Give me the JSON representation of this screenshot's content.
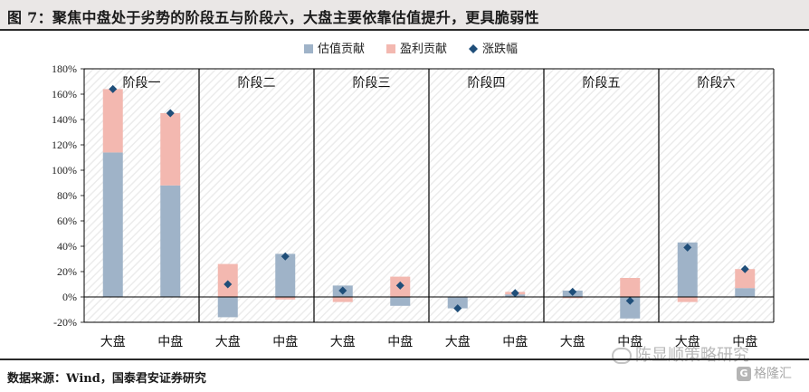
{
  "title": "图 7：聚焦中盘处于劣势的阶段五与阶段六，大盘主要依靠估值提升，更具脆弱性",
  "source": "数据来源：Wind，国泰君安证券研究",
  "watermark": {
    "name": "陈显顺策略研究",
    "badge_letter": "G",
    "badge_text": "格隆汇"
  },
  "colors": {
    "valuation": "#9fb3c8",
    "earnings": "#f3b8b0",
    "change": "#1f4e79"
  },
  "chart_data": {
    "type": "bar",
    "stacked": true,
    "y_unit": "%",
    "ylim": [
      -20,
      180
    ],
    "y_ticks": [
      -20,
      0,
      20,
      40,
      60,
      80,
      100,
      120,
      140,
      160,
      180
    ],
    "y_tick_labels": [
      "-20%",
      "0%",
      "20%",
      "40%",
      "60%",
      "80%",
      "100%",
      "120%",
      "140%",
      "160%",
      "180%"
    ],
    "legend_position": "top-center",
    "stages": [
      "阶段一",
      "阶段二",
      "阶段三",
      "阶段四",
      "阶段五",
      "阶段六"
    ],
    "categories": [
      "大盘",
      "中盘",
      "大盘",
      "中盘",
      "大盘",
      "中盘",
      "大盘",
      "中盘",
      "大盘",
      "中盘",
      "大盘",
      "中盘"
    ],
    "series": [
      {
        "name": "估值贡献",
        "kind": "bar",
        "values": [
          114,
          88,
          -16,
          34,
          9,
          -7,
          -9,
          2,
          5,
          -17,
          43,
          7
        ]
      },
      {
        "name": "盈利贡献",
        "kind": "bar",
        "values": [
          50,
          57,
          26,
          -2,
          -4,
          16,
          0,
          2,
          -1,
          15,
          -4,
          15
        ]
      },
      {
        "name": "涨跌幅",
        "kind": "marker",
        "values": [
          164,
          145,
          10,
          32,
          5,
          9,
          -9,
          3,
          4,
          -3,
          39,
          22
        ]
      }
    ]
  }
}
